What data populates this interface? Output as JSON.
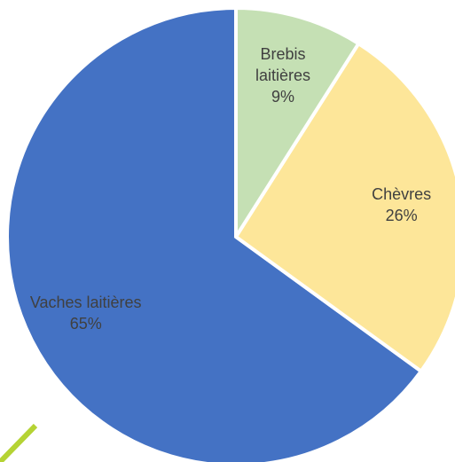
{
  "chart_data": {
    "type": "pie",
    "categories": [
      "Brebis laitières",
      "Chèvres",
      "Vaches laitières"
    ],
    "values": [
      9,
      26,
      65
    ],
    "value_labels": [
      "9%",
      "26%",
      "65%"
    ],
    "colors": [
      "#c5e0b4",
      "#fde699",
      "#4472c4"
    ]
  }
}
